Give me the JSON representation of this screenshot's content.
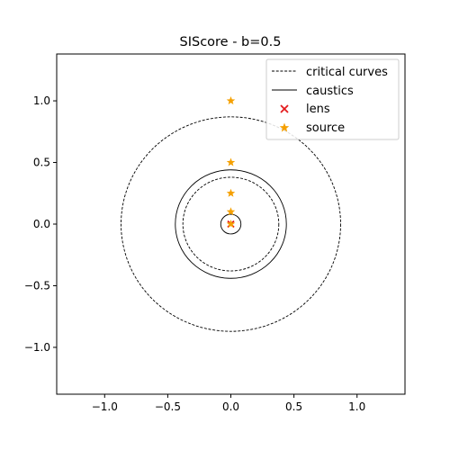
{
  "chart_data": {
    "type": "scatter",
    "title": "SIScore - b=0.5",
    "xlabel": "",
    "ylabel": "",
    "xlim": [
      -1.38,
      1.38
    ],
    "ylim": [
      -1.38,
      1.38
    ],
    "xticks": [
      -1.0,
      -0.5,
      0.0,
      0.5,
      1.0
    ],
    "xtick_labels": [
      "−1.0",
      "−0.5",
      "0.0",
      "0.5",
      "1.0"
    ],
    "yticks": [
      -1.0,
      -0.5,
      0.0,
      0.5,
      1.0
    ],
    "ytick_labels": [
      "−1.0",
      "−0.5",
      "0.0",
      "0.5",
      "1.0"
    ],
    "grid": false,
    "legend_position": "top-right",
    "critical_curves": {
      "name": "critical curves",
      "style": "dashed",
      "color": "#000000",
      "radii": [
        0.87,
        0.38
      ]
    },
    "caustics": {
      "name": "caustics",
      "style": "solid",
      "color": "#000000",
      "radii": [
        0.44,
        0.08
      ]
    },
    "lens": {
      "name": "lens",
      "marker": "x",
      "color": "#e31a1c",
      "points": [
        {
          "x": 0.0,
          "y": 0.0
        }
      ]
    },
    "source": {
      "name": "source",
      "marker": "star",
      "color": "#f5a000",
      "points": [
        {
          "x": 0.0,
          "y": 1.0
        },
        {
          "x": 0.0,
          "y": 0.5
        },
        {
          "x": 0.0,
          "y": 0.25
        },
        {
          "x": 0.0,
          "y": 0.1
        },
        {
          "x": 0.0,
          "y": 0.0
        }
      ]
    }
  }
}
